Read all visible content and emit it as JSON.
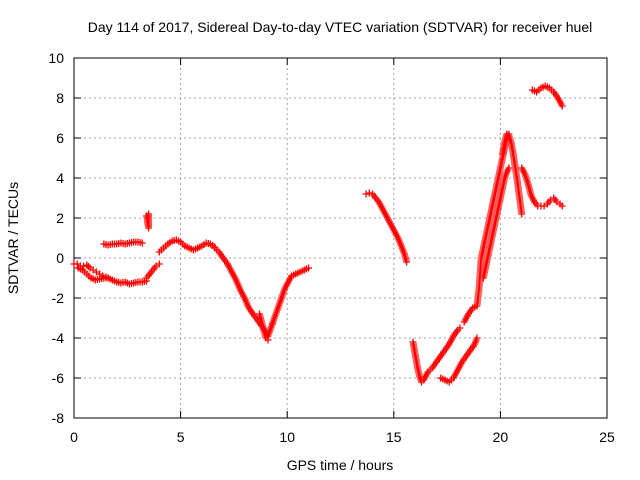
{
  "chart_data": {
    "type": "scatter",
    "title": "Day 114 of 2017, Sidereal Day-to-day VTEC variation (SDTVAR) for receiver huel",
    "xlabel": "GPS time / hours",
    "ylabel": "SDTVAR / TECUs",
    "xlim": [
      0,
      25
    ],
    "ylim": [
      -8,
      10
    ],
    "xticks": [
      0,
      5,
      10,
      15,
      20,
      25
    ],
    "yticks": [
      -8,
      -6,
      -4,
      -2,
      0,
      2,
      4,
      6,
      8,
      10
    ],
    "grid": true,
    "marker": "+",
    "colors": {
      "series": "#ff0000",
      "grid": "#a0a0a0",
      "axis": "#000000"
    },
    "series": [
      {
        "x": [
          0,
          0.15,
          0.3,
          0.45,
          0.6,
          0.75,
          0.9,
          1.05,
          1.2,
          1.35,
          1.5
        ],
        "y": [
          -0.3,
          -0.3,
          -0.4,
          -0.4,
          -0.35,
          -0.5,
          -0.6,
          -0.7,
          -0.8,
          -0.9,
          -0.95
        ]
      },
      {
        "x": [
          0.2,
          0.4,
          0.6,
          0.8,
          1.0,
          1.2,
          1.4,
          1.6
        ],
        "y": [
          -0.5,
          -0.6,
          -0.8,
          -1.0,
          -1.1,
          -1.05,
          -1.0,
          -1.0
        ]
      },
      {
        "x": [
          1.4,
          1.6,
          1.8,
          2.0,
          2.2,
          2.4,
          2.6,
          2.8,
          3.0,
          3.2
        ],
        "y": [
          0.7,
          0.65,
          0.7,
          0.7,
          0.75,
          0.7,
          0.75,
          0.8,
          0.8,
          0.75
        ]
      },
      {
        "x": [
          1.6,
          1.8,
          2.0,
          2.2,
          2.4,
          2.6,
          2.8,
          3.0,
          3.2,
          3.4
        ],
        "y": [
          -1.0,
          -1.1,
          -1.2,
          -1.25,
          -1.2,
          -1.3,
          -1.25,
          -1.2,
          -1.2,
          -1.15
        ]
      },
      {
        "x": [
          3.4,
          3.45,
          3.5,
          3.5,
          3.45
        ],
        "y": [
          2.1,
          1.9,
          2.2,
          1.5,
          1.8
        ]
      },
      {
        "x": [
          3.4,
          3.55,
          3.7,
          3.85,
          4.0
        ],
        "y": [
          -1.0,
          -0.8,
          -0.6,
          -0.4,
          -0.3
        ]
      },
      {
        "x": [
          4.0,
          4.2,
          4.4,
          4.6,
          4.8,
          5.0,
          5.2,
          5.4,
          5.6,
          5.8,
          6.0,
          6.2,
          6.4,
          6.6
        ],
        "y": [
          0.3,
          0.5,
          0.7,
          0.85,
          0.9,
          0.8,
          0.6,
          0.5,
          0.4,
          0.5,
          0.6,
          0.75,
          0.7,
          0.55
        ]
      },
      {
        "x": [
          6.6,
          6.8,
          7.0,
          7.2,
          7.4,
          7.6,
          7.8,
          8.0,
          8.2,
          8.4,
          8.6,
          8.8,
          9.0,
          9.1,
          9.2,
          9.3
        ],
        "y": [
          0.5,
          0.3,
          0.0,
          -0.3,
          -0.7,
          -1.1,
          -1.6,
          -2.0,
          -2.5,
          -2.8,
          -3.1,
          -3.4,
          -3.7,
          -3.9,
          -3.6,
          -3.3
        ]
      },
      {
        "x": [
          8.7,
          8.8,
          8.9,
          9.0,
          9.1
        ],
        "y": [
          -2.8,
          -3.2,
          -3.6,
          -4.0,
          -4.1
        ]
      },
      {
        "x": [
          9.3,
          9.4,
          9.5,
          9.6,
          9.7,
          9.8,
          9.9,
          10.0,
          10.1,
          10.2,
          10.4,
          10.6,
          10.8,
          11.0
        ],
        "y": [
          -3.3,
          -3.0,
          -2.7,
          -2.4,
          -2.1,
          -1.8,
          -1.5,
          -1.3,
          -1.1,
          -0.9,
          -0.8,
          -0.7,
          -0.6,
          -0.5
        ]
      },
      {
        "x": [
          13.7,
          13.85,
          14.0,
          14.15,
          14.3,
          14.45,
          14.6,
          14.75,
          14.9,
          15.05,
          15.2,
          15.35,
          15.5,
          15.6
        ],
        "y": [
          3.2,
          3.25,
          3.2,
          3.0,
          2.8,
          2.5,
          2.2,
          1.9,
          1.6,
          1.3,
          1.0,
          0.6,
          0.2,
          -0.2
        ]
      },
      {
        "x": [
          15.9,
          16.0,
          16.1,
          16.2,
          16.3,
          16.4,
          16.5,
          16.6,
          16.8,
          17.0,
          17.2,
          17.4,
          17.6,
          17.8,
          18.0,
          18.1
        ],
        "y": [
          -4.2,
          -4.8,
          -5.4,
          -5.9,
          -6.2,
          -6.1,
          -5.9,
          -5.7,
          -5.5,
          -5.2,
          -4.9,
          -4.6,
          -4.3,
          -3.9,
          -3.6,
          -3.5
        ]
      },
      {
        "x": [
          17.2,
          17.4,
          17.6,
          17.8,
          18.0,
          18.2,
          18.4,
          18.6,
          18.8,
          18.9
        ],
        "y": [
          -6.0,
          -6.1,
          -6.2,
          -6.0,
          -5.6,
          -5.2,
          -4.9,
          -4.6,
          -4.3,
          -4.0
        ]
      },
      {
        "x": [
          18.3,
          18.5,
          18.7,
          18.9,
          19.0,
          19.1,
          19.2,
          19.3,
          19.4,
          19.5,
          19.6,
          19.7,
          19.8,
          19.9,
          20.0,
          20.1,
          20.2,
          20.3,
          20.4
        ],
        "y": [
          -3.2,
          -2.8,
          -2.5,
          -2.4,
          -1.5,
          0.0,
          0.5,
          1.0,
          1.5,
          2.0,
          2.5,
          3.0,
          3.5,
          4.0,
          4.5,
          5.0,
          5.5,
          6.0,
          6.2
        ]
      },
      {
        "x": [
          20.1,
          20.2,
          20.3,
          20.4,
          20.5,
          20.6,
          20.7,
          20.8,
          20.9,
          21.0
        ],
        "y": [
          5.2,
          5.8,
          6.2,
          6.1,
          5.8,
          5.2,
          4.5,
          3.8,
          3.0,
          2.2
        ]
      },
      {
        "x": [
          19.2,
          19.3,
          19.4,
          19.5,
          19.6,
          19.7,
          19.8,
          19.9,
          20.0,
          20.1,
          20.2,
          20.3,
          20.4
        ],
        "y": [
          -1.0,
          -0.5,
          0.0,
          0.5,
          1.0,
          1.5,
          2.0,
          2.5,
          3.0,
          3.5,
          4.0,
          4.3,
          4.5
        ]
      },
      {
        "x": [
          21.0,
          21.15,
          21.3,
          21.45,
          21.6,
          21.75,
          21.9,
          22.05,
          22.2,
          22.35,
          22.5,
          22.65,
          22.8,
          22.9
        ],
        "y": [
          4.5,
          4.2,
          3.7,
          3.1,
          2.8,
          2.6,
          2.6,
          2.6,
          2.7,
          2.9,
          3.0,
          2.8,
          2.7,
          2.6
        ]
      },
      {
        "x": [
          21.5,
          21.7,
          21.9,
          22.1,
          22.3,
          22.5,
          22.7,
          22.9
        ],
        "y": [
          8.4,
          8.3,
          8.5,
          8.6,
          8.5,
          8.3,
          8.0,
          7.6
        ]
      }
    ]
  }
}
